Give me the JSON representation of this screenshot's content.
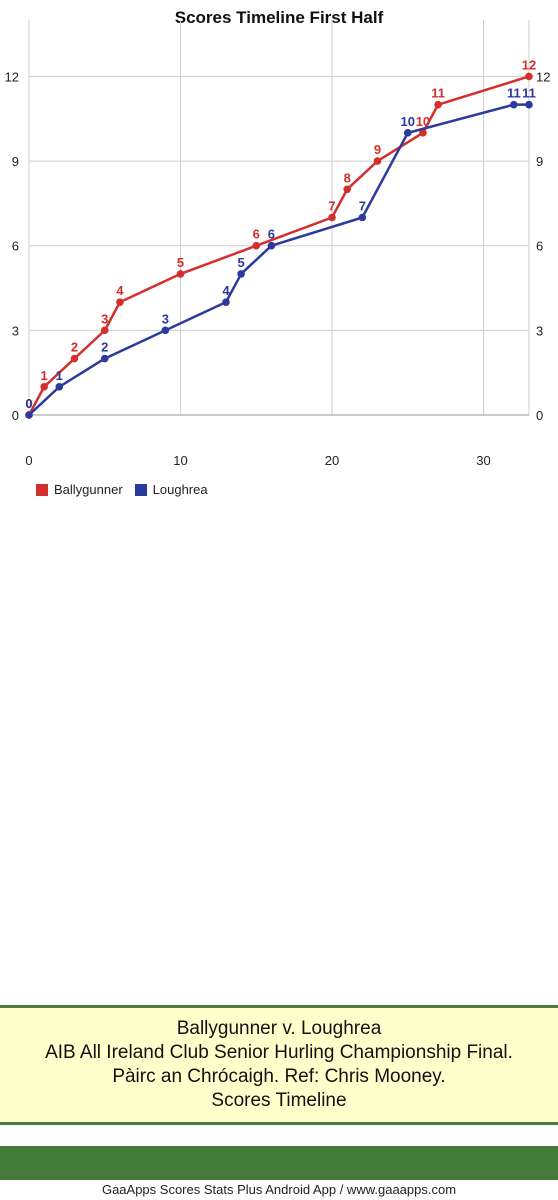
{
  "chart_data": {
    "type": "line",
    "title": "Scores Timeline First Half",
    "xlim": [
      0,
      33
    ],
    "ylim": [
      0,
      14
    ],
    "x_ticks": [
      0,
      10,
      20,
      30
    ],
    "y_ticks": [
      0,
      3,
      6,
      9,
      12
    ],
    "grid": true,
    "legend_position": "bottom-left",
    "series": [
      {
        "name": "Ballygunner",
        "color": "#d32f2f",
        "points": [
          [
            0,
            0
          ],
          [
            1,
            1
          ],
          [
            3,
            2
          ],
          [
            5,
            3
          ],
          [
            6,
            4
          ],
          [
            10,
            5
          ],
          [
            15,
            6
          ],
          [
            20,
            7
          ],
          [
            21,
            8
          ],
          [
            23,
            9
          ],
          [
            26,
            10
          ],
          [
            27,
            11
          ],
          [
            33,
            12
          ]
        ],
        "labels": [
          "0",
          "1",
          "2",
          "3",
          "4",
          "5",
          "6",
          "7",
          "8",
          "9",
          "10",
          "11",
          "12"
        ]
      },
      {
        "name": "Loughrea",
        "color": "#2b3a9c",
        "points": [
          [
            0,
            0
          ],
          [
            2,
            1
          ],
          [
            5,
            2
          ],
          [
            9,
            3
          ],
          [
            13,
            4
          ],
          [
            14,
            5
          ],
          [
            16,
            6
          ],
          [
            22,
            7
          ],
          [
            25,
            10
          ],
          [
            32,
            11
          ],
          [
            33,
            11
          ]
        ],
        "labels": [
          "0",
          "1",
          "2",
          "3",
          "4",
          "5",
          "6",
          "7",
          "10",
          "11",
          "11"
        ]
      }
    ]
  },
  "info": {
    "line1": "Ballygunner v. Loughrea",
    "line2": "AIB All Ireland Club Senior Hurling Championship Final.",
    "line3": "Pàirc an Chrócaigh. Ref: Chris Mooney.",
    "line4": "Scores Timeline"
  },
  "footer": "GaaApps Scores Stats Plus Android App / www.gaaapps.com"
}
